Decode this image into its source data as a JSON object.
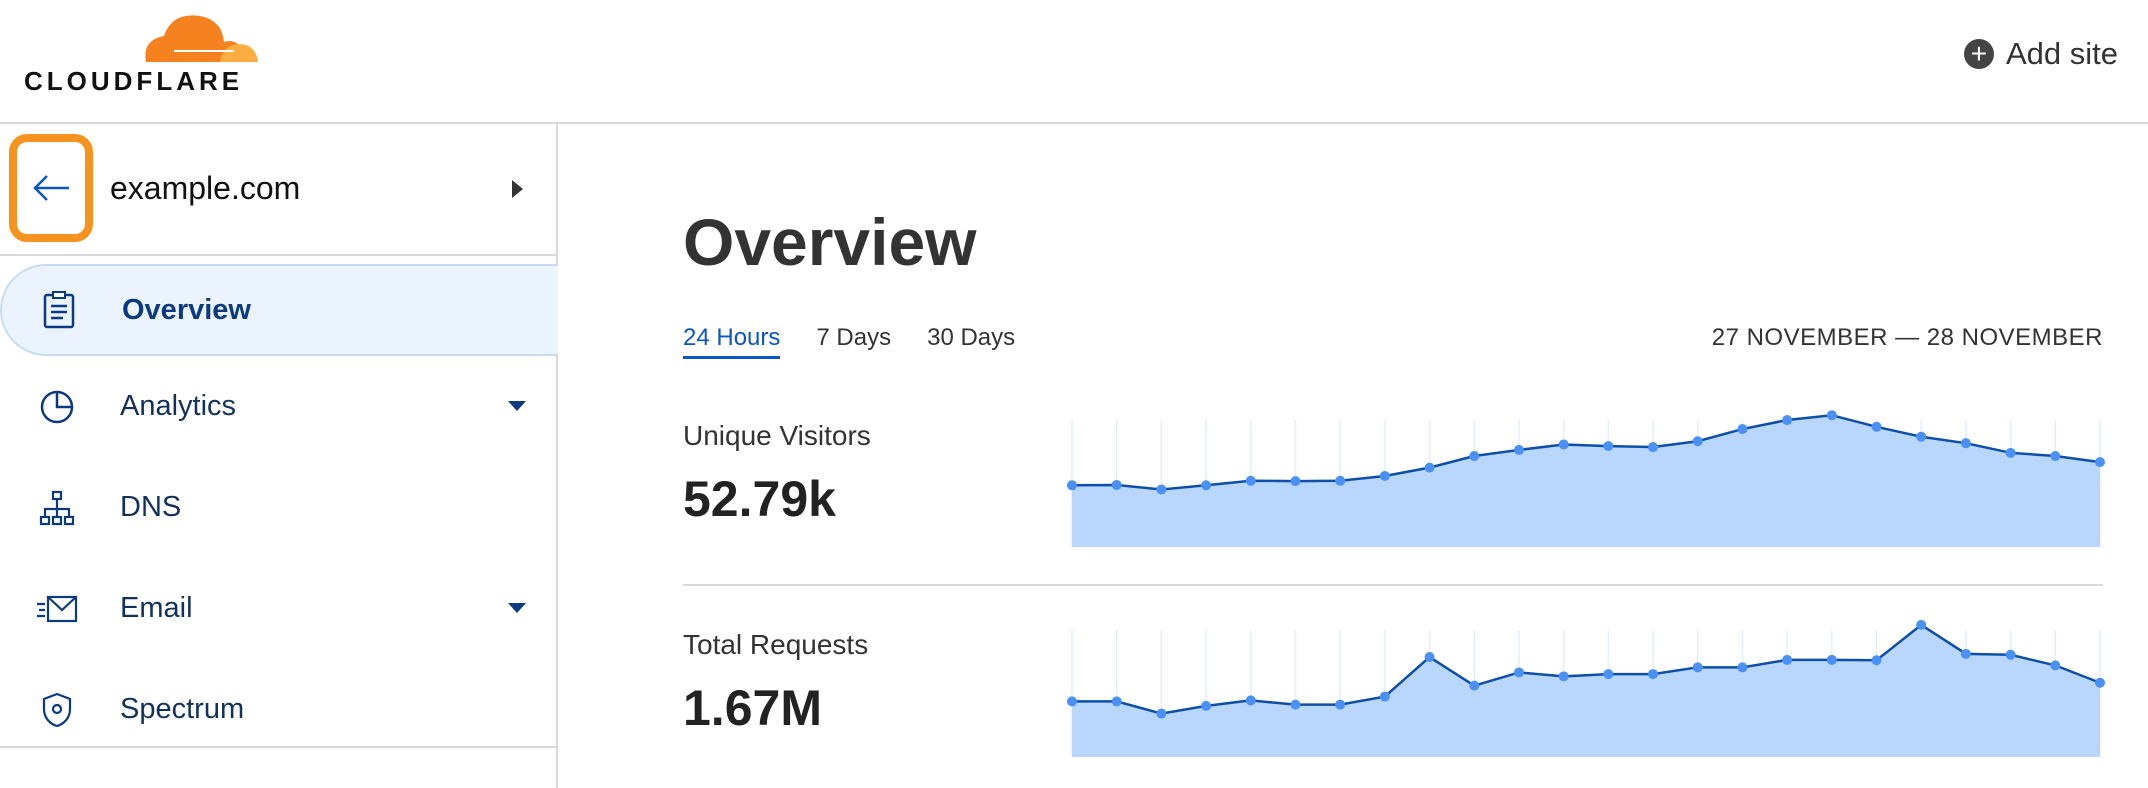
{
  "header": {
    "logo_text": "CLOUDFLARE",
    "add_site_label": "Add site",
    "add_site_icon": "plus-circle-icon"
  },
  "sidebar": {
    "zone_name": "example.com",
    "items": [
      {
        "label": "Overview",
        "icon": "clipboard-icon",
        "active": true
      },
      {
        "label": "Analytics",
        "icon": "pie-chart-icon",
        "dropdown": true
      },
      {
        "label": "DNS",
        "icon": "sitemap-icon"
      },
      {
        "label": "Email",
        "icon": "email-icon",
        "dropdown": true
      },
      {
        "label": "Spectrum",
        "icon": "shield-icon"
      }
    ]
  },
  "main": {
    "title": "Overview",
    "tabs": [
      {
        "label": "24 Hours",
        "active": true
      },
      {
        "label": "7 Days"
      },
      {
        "label": "30 Days"
      }
    ],
    "date_range": "27 NOVEMBER — 28 NOVEMBER",
    "metrics": [
      {
        "label": "Unique Visitors",
        "value": "52.79k"
      },
      {
        "label": "Total Requests",
        "value": "1.67M"
      }
    ]
  },
  "colors": {
    "accent": "#0b55c4",
    "brand_orange": "#f6821f",
    "highlight": "#f6921e",
    "area_fill": "#b9d6fc",
    "line": "#0d4fa8",
    "point": "#4a90f5"
  },
  "chart_data": [
    {
      "type": "area",
      "values": [
        192,
        193,
        179,
        192,
        206,
        205,
        206,
        221,
        247,
        283,
        302,
        319,
        314,
        311,
        329,
        367,
        395,
        410,
        374,
        343,
        323,
        293,
        283,
        264
      ],
      "grid": "vertical"
    },
    {
      "type": "area",
      "values": [
        173,
        173,
        135,
        159,
        176,
        163,
        163,
        188,
        311,
        222,
        263,
        251,
        258,
        258,
        279,
        279,
        302,
        302,
        301,
        411,
        321,
        318,
        285,
        231
      ],
      "grid": "vertical"
    }
  ]
}
